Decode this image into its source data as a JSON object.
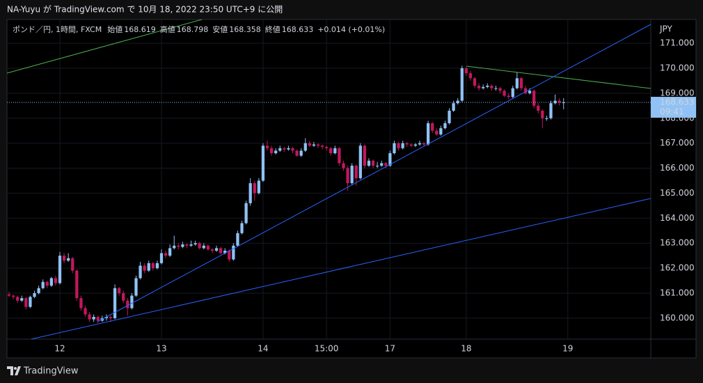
{
  "header": "NA-Yuyu が TradingView.com で 10月 18, 2022 23:50 UTC+9 に公開",
  "footer": "TradingView",
  "chart_data": {
    "type": "candlestick",
    "symbol": "ポンド／円, 1時間, FXCM",
    "ohlc_legend": [
      {
        "label": "始値",
        "value": 168.619
      },
      {
        "label": "高値",
        "value": 168.798
      },
      {
        "label": "安値",
        "value": 168.358
      },
      {
        "label": "終値",
        "value": 168.633
      }
    ],
    "change": "+0.014 (+0.01%)",
    "currency": "JPY",
    "up_color": "#90c2f5",
    "down_color": "#c2185b",
    "current_price": {
      "value": 168.633,
      "label": "168.633"
    },
    "countdown": "09:41",
    "xlim": [
      -0.5,
      151.6
    ],
    "xticks": [
      {
        "value": 12,
        "label": "12"
      },
      {
        "value": 36,
        "label": "13"
      },
      {
        "value": 60,
        "label": "14"
      },
      {
        "value": 75,
        "label": "15:00"
      },
      {
        "value": 90,
        "label": "17"
      },
      {
        "value": 108,
        "label": "18"
      },
      {
        "value": 132,
        "label": "19"
      }
    ],
    "ylim": [
      159.16,
      171.95
    ],
    "yticks": [
      {
        "value": 160,
        "label": "160.000"
      },
      {
        "value": 161,
        "label": "161.000"
      },
      {
        "value": 162,
        "label": "162.000"
      },
      {
        "value": 163,
        "label": "163.000"
      },
      {
        "value": 164,
        "label": "164.000"
      },
      {
        "value": 165,
        "label": "165.000"
      },
      {
        "value": 166,
        "label": "166.000"
      },
      {
        "value": 167,
        "label": "167.000"
      },
      {
        "value": 168,
        "label": "168.000"
      },
      {
        "value": 169,
        "label": "169.000"
      },
      {
        "value": 170,
        "label": "170.000"
      },
      {
        "value": 171,
        "label": "171.000"
      }
    ],
    "grid": true,
    "candles": [
      [
        160.95,
        161.05,
        160.85,
        160.9
      ],
      [
        160.9,
        160.95,
        160.75,
        160.85
      ],
      [
        160.85,
        160.9,
        160.6,
        160.7
      ],
      [
        160.7,
        160.9,
        160.65,
        160.8
      ],
      [
        160.8,
        160.85,
        160.35,
        160.45
      ],
      [
        160.45,
        160.9,
        160.4,
        160.85
      ],
      [
        160.85,
        161.1,
        160.8,
        161.0
      ],
      [
        161.0,
        161.3,
        160.95,
        161.2
      ],
      [
        161.2,
        161.55,
        161.15,
        161.45
      ],
      [
        161.45,
        161.5,
        161.2,
        161.3
      ],
      [
        161.3,
        161.65,
        161.25,
        161.6
      ],
      [
        161.6,
        161.7,
        161.3,
        161.4
      ],
      [
        161.4,
        162.65,
        161.35,
        162.5
      ],
      [
        162.5,
        162.6,
        162.2,
        162.3
      ],
      [
        162.3,
        162.6,
        162.25,
        162.4
      ],
      [
        162.4,
        162.45,
        161.8,
        161.9
      ],
      [
        161.9,
        161.95,
        160.7,
        160.8
      ],
      [
        160.8,
        160.9,
        160.3,
        160.4
      ],
      [
        160.4,
        160.5,
        160.05,
        160.15
      ],
      [
        160.15,
        160.25,
        159.85,
        159.95
      ],
      [
        159.95,
        160.15,
        159.85,
        160.05
      ],
      [
        160.05,
        160.1,
        159.8,
        159.9
      ],
      [
        159.9,
        160.1,
        159.85,
        160.0
      ],
      [
        160.0,
        160.15,
        159.9,
        160.05
      ],
      [
        160.05,
        160.1,
        159.85,
        160.0
      ],
      [
        160.0,
        161.35,
        159.95,
        161.2
      ],
      [
        161.2,
        161.25,
        160.9,
        161.0
      ],
      [
        161.0,
        161.1,
        160.6,
        160.7
      ],
      [
        160.7,
        160.8,
        160.1,
        160.4
      ],
      [
        160.4,
        161.0,
        160.35,
        160.9
      ],
      [
        160.9,
        161.7,
        160.85,
        161.6
      ],
      [
        161.6,
        162.25,
        161.55,
        162.1
      ],
      [
        162.1,
        162.2,
        161.8,
        161.9
      ],
      [
        161.9,
        162.3,
        161.85,
        162.2
      ],
      [
        162.2,
        162.25,
        161.9,
        162.0
      ],
      [
        162.0,
        162.3,
        161.95,
        162.2
      ],
      [
        162.2,
        162.75,
        162.15,
        162.6
      ],
      [
        162.6,
        162.7,
        162.4,
        162.5
      ],
      [
        162.5,
        162.95,
        162.45,
        162.8
      ],
      [
        162.8,
        163.3,
        162.75,
        162.9
      ],
      [
        162.9,
        163.0,
        162.75,
        162.85
      ],
      [
        162.85,
        163.05,
        162.8,
        162.95
      ],
      [
        162.95,
        163.0,
        162.8,
        162.9
      ],
      [
        162.9,
        163.1,
        162.85,
        162.95
      ],
      [
        162.95,
        163.1,
        162.9,
        163.0
      ],
      [
        163.0,
        163.05,
        162.75,
        162.8
      ],
      [
        162.8,
        163.0,
        162.75,
        162.9
      ],
      [
        162.9,
        162.95,
        162.7,
        162.75
      ],
      [
        162.75,
        162.8,
        162.6,
        162.7
      ],
      [
        162.7,
        162.9,
        162.65,
        162.8
      ],
      [
        162.8,
        162.85,
        162.55,
        162.6
      ],
      [
        162.6,
        162.8,
        162.55,
        162.7
      ],
      [
        162.7,
        162.75,
        162.25,
        162.35
      ],
      [
        162.35,
        163.0,
        162.3,
        162.9
      ],
      [
        162.9,
        163.5,
        162.85,
        163.4
      ],
      [
        163.4,
        163.9,
        163.35,
        163.8
      ],
      [
        163.8,
        164.7,
        163.75,
        164.6
      ],
      [
        164.6,
        165.6,
        164.5,
        165.4
      ],
      [
        165.4,
        165.5,
        164.7,
        165.0
      ],
      [
        165.0,
        165.6,
        164.95,
        165.5
      ],
      [
        165.5,
        167.0,
        165.45,
        166.9
      ],
      [
        166.9,
        167.1,
        166.7,
        166.8
      ],
      [
        166.8,
        166.9,
        166.5,
        166.6
      ],
      [
        166.6,
        166.8,
        166.55,
        166.7
      ],
      [
        166.7,
        166.9,
        166.65,
        166.8
      ],
      [
        166.8,
        166.85,
        166.65,
        166.75
      ],
      [
        166.75,
        166.9,
        166.7,
        166.8
      ],
      [
        166.8,
        166.85,
        166.6,
        166.7
      ],
      [
        166.7,
        166.75,
        166.45,
        166.5
      ],
      [
        166.5,
        166.8,
        166.45,
        166.7
      ],
      [
        166.7,
        167.2,
        166.65,
        167.0
      ],
      [
        167.0,
        167.1,
        166.85,
        166.9
      ],
      [
        166.9,
        167.05,
        166.85,
        166.95
      ],
      [
        166.95,
        167.0,
        166.8,
        166.9
      ],
      [
        166.9,
        166.95,
        166.75,
        166.85
      ],
      [
        166.85,
        166.9,
        166.7,
        166.8
      ],
      [
        166.8,
        166.85,
        166.5,
        166.6
      ],
      [
        166.6,
        166.9,
        166.55,
        166.8
      ],
      [
        166.8,
        166.85,
        166.1,
        166.2
      ],
      [
        166.2,
        166.3,
        165.9,
        166.0
      ],
      [
        166.0,
        166.1,
        165.1,
        165.4
      ],
      [
        165.4,
        166.2,
        165.35,
        166.1
      ],
      [
        166.1,
        166.15,
        165.3,
        165.6
      ],
      [
        165.6,
        167.0,
        165.55,
        166.9
      ],
      [
        166.9,
        166.95,
        166.0,
        166.1
      ],
      [
        166.1,
        166.4,
        166.05,
        166.3
      ],
      [
        166.3,
        166.35,
        166.0,
        166.1
      ],
      [
        166.1,
        166.25,
        166.0,
        166.1
      ],
      [
        166.1,
        166.3,
        166.05,
        166.2
      ],
      [
        166.2,
        166.25,
        166.0,
        166.1
      ],
      [
        166.1,
        166.7,
        166.05,
        166.6
      ],
      [
        166.6,
        167.1,
        166.55,
        167.0
      ],
      [
        167.0,
        167.05,
        166.7,
        166.8
      ],
      [
        166.8,
        167.1,
        166.75,
        167.0
      ],
      [
        167.0,
        167.05,
        166.85,
        166.95
      ],
      [
        166.95,
        167.0,
        166.85,
        166.9
      ],
      [
        166.9,
        167.0,
        166.85,
        166.95
      ],
      [
        166.95,
        167.1,
        166.9,
        167.0
      ],
      [
        167.0,
        167.05,
        166.9,
        166.95
      ],
      [
        166.95,
        167.9,
        166.9,
        167.8
      ],
      [
        167.8,
        167.85,
        167.4,
        167.5
      ],
      [
        167.5,
        167.6,
        167.3,
        167.35
      ],
      [
        167.35,
        167.7,
        167.3,
        167.6
      ],
      [
        167.6,
        167.9,
        167.55,
        167.8
      ],
      [
        167.8,
        168.4,
        167.75,
        168.3
      ],
      [
        168.3,
        168.7,
        168.25,
        168.6
      ],
      [
        168.6,
        168.8,
        168.55,
        168.7
      ],
      [
        168.7,
        170.1,
        168.65,
        170.0
      ],
      [
        170.0,
        170.05,
        169.7,
        169.8
      ],
      [
        169.8,
        169.9,
        169.5,
        169.6
      ],
      [
        169.6,
        169.65,
        169.2,
        169.3
      ],
      [
        169.3,
        169.4,
        169.1,
        169.2
      ],
      [
        169.2,
        169.35,
        169.15,
        169.25
      ],
      [
        169.25,
        169.4,
        169.2,
        169.3
      ],
      [
        169.3,
        169.35,
        169.1,
        169.2
      ],
      [
        169.2,
        169.3,
        169.1,
        169.2
      ],
      [
        169.2,
        169.25,
        169.0,
        169.1
      ],
      [
        169.1,
        169.15,
        168.85,
        168.9
      ],
      [
        168.9,
        169.0,
        168.75,
        168.85
      ],
      [
        168.85,
        169.3,
        168.8,
        169.2
      ],
      [
        169.2,
        169.85,
        169.15,
        169.6
      ],
      [
        169.6,
        169.65,
        169.1,
        169.2
      ],
      [
        169.2,
        169.3,
        168.95,
        169.0
      ],
      [
        169.0,
        169.2,
        168.95,
        169.1
      ],
      [
        169.1,
        169.15,
        168.4,
        168.5
      ],
      [
        168.5,
        168.6,
        168.2,
        168.3
      ],
      [
        168.3,
        168.35,
        167.6,
        168.0
      ],
      [
        168.0,
        168.1,
        167.9,
        168.0
      ],
      [
        168.0,
        168.7,
        167.95,
        168.6
      ],
      [
        168.6,
        168.95,
        168.55,
        168.7
      ],
      [
        168.7,
        168.8,
        168.5,
        168.619
      ],
      [
        168.619,
        168.798,
        168.358,
        168.633
      ]
    ]
  }
}
